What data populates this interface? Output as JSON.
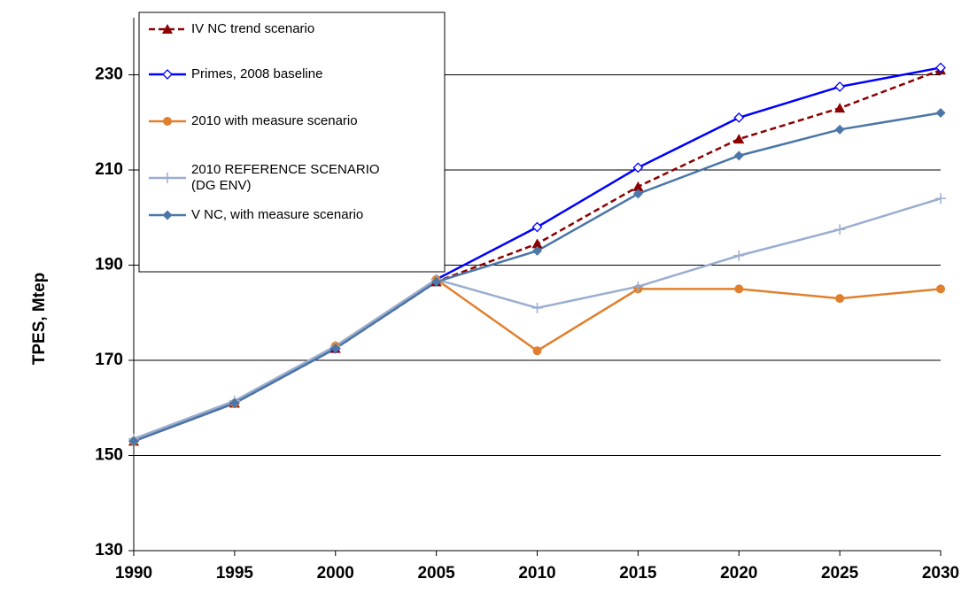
{
  "chart_data": {
    "type": "line",
    "y_label": "TPES, Mtep",
    "x": [
      1990,
      1995,
      2000,
      2005,
      2010,
      2015,
      2020,
      2025,
      2030
    ],
    "xlim": [
      1990,
      2030
    ],
    "xticks": [
      1990,
      1995,
      2000,
      2005,
      2010,
      2015,
      2020,
      2025,
      2030
    ],
    "ylim": [
      130,
      242
    ],
    "yticks": [
      130,
      150,
      170,
      190,
      210,
      230
    ],
    "grid": true,
    "legend": "top-left",
    "series": [
      {
        "name": "IV NC trend scenario",
        "color": "#8b0000",
        "dash": true,
        "marker": "triangle",
        "values": [
          153,
          161,
          172.5,
          186.5,
          194.5,
          206.5,
          216.5,
          223,
          231
        ]
      },
      {
        "name": "Primes, 2008 baseline",
        "color": "#0000ff",
        "marker": "open-diamond",
        "values": [
          153,
          161,
          172.5,
          187,
          198,
          210.5,
          221,
          227.5,
          231.5
        ]
      },
      {
        "name": "2010 with measure scenario",
        "color": "#e0802e",
        "marker": "circle",
        "values": [
          153,
          161,
          173,
          187,
          172,
          185,
          185,
          183,
          185
        ]
      },
      {
        "name": "2010 REFERENCE SCENARIO\n(DG ENV)",
        "color": "#9aaed0",
        "marker": "plus",
        "values": [
          153.5,
          161.5,
          173,
          187,
          181,
          185.5,
          192,
          197.5,
          204
        ]
      },
      {
        "name": "V NC, with measure scenario",
        "color": "#4a76a8",
        "marker": "diamond",
        "values": [
          153,
          161,
          172.5,
          186.5,
          193,
          205,
          213,
          218.5,
          222
        ]
      }
    ]
  }
}
